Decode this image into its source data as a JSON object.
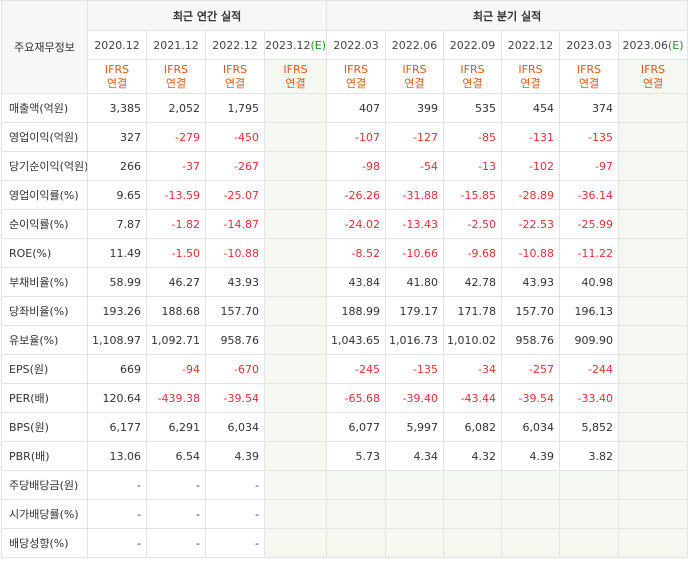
{
  "header": {
    "row_label": "주요재무정보",
    "annual_group": "최근 연간 실적",
    "quarter_group": "최근 분기 실적",
    "ifrs_top": "IFRS",
    "ifrs_bottom": "연결",
    "est_mark": "(E)"
  },
  "annual_periods": [
    "2020.12",
    "2021.12",
    "2022.12",
    "2023.12"
  ],
  "quarter_periods": [
    "2022.03",
    "2022.06",
    "2022.09",
    "2022.12",
    "2023.03",
    "2023.06"
  ],
  "rows": [
    {
      "label": "매출액(억원)",
      "annual": [
        "3,385",
        "2,052",
        "1,795",
        ""
      ],
      "quarter": [
        "407",
        "399",
        "535",
        "454",
        "374",
        ""
      ]
    },
    {
      "label": "영업이익(억원)",
      "annual": [
        "327",
        "-279",
        "-450",
        ""
      ],
      "quarter": [
        "-107",
        "-127",
        "-85",
        "-131",
        "-135",
        ""
      ]
    },
    {
      "label": "당기순이익(억원)",
      "annual": [
        "266",
        "-37",
        "-267",
        ""
      ],
      "quarter": [
        "-98",
        "-54",
        "-13",
        "-102",
        "-97",
        ""
      ]
    },
    {
      "label": "영업이익률(%)",
      "annual": [
        "9.65",
        "-13.59",
        "-25.07",
        ""
      ],
      "quarter": [
        "-26.26",
        "-31.88",
        "-15.85",
        "-28.89",
        "-36.14",
        ""
      ]
    },
    {
      "label": "순이익률(%)",
      "annual": [
        "7.87",
        "-1.82",
        "-14.87",
        ""
      ],
      "quarter": [
        "-24.02",
        "-13.43",
        "-2.50",
        "-22.53",
        "-25.99",
        ""
      ]
    },
    {
      "label": "ROE(%)",
      "annual": [
        "11.49",
        "-1.50",
        "-10.88",
        ""
      ],
      "quarter": [
        "-8.52",
        "-10.66",
        "-9.68",
        "-10.88",
        "-11.22",
        ""
      ]
    },
    {
      "label": "부채비율(%)",
      "annual": [
        "58.99",
        "46.27",
        "43.93",
        ""
      ],
      "quarter": [
        "43.84",
        "41.80",
        "42.78",
        "43.93",
        "40.98",
        ""
      ]
    },
    {
      "label": "당좌비율(%)",
      "annual": [
        "193.26",
        "188.68",
        "157.70",
        ""
      ],
      "quarter": [
        "188.99",
        "179.17",
        "171.78",
        "157.70",
        "196.13",
        ""
      ]
    },
    {
      "label": "유보율(%)",
      "annual": [
        "1,108.97",
        "1,092.71",
        "958.76",
        ""
      ],
      "quarter": [
        "1,043.65",
        "1,016.73",
        "1,010.02",
        "958.76",
        "909.90",
        ""
      ]
    },
    {
      "label": "EPS(원)",
      "annual": [
        "669",
        "-94",
        "-670",
        ""
      ],
      "quarter": [
        "-245",
        "-135",
        "-34",
        "-257",
        "-244",
        ""
      ]
    },
    {
      "label": "PER(배)",
      "annual": [
        "120.64",
        "-439.38",
        "-39.54",
        ""
      ],
      "quarter": [
        "-65.68",
        "-39.40",
        "-43.44",
        "-39.54",
        "-33.40",
        ""
      ]
    },
    {
      "label": "BPS(원)",
      "annual": [
        "6,177",
        "6,291",
        "6,034",
        ""
      ],
      "quarter": [
        "6,077",
        "5,997",
        "6,082",
        "6,034",
        "5,852",
        ""
      ]
    },
    {
      "label": "PBR(배)",
      "annual": [
        "13.06",
        "6.54",
        "4.39",
        ""
      ],
      "quarter": [
        "5.73",
        "4.34",
        "4.32",
        "4.39",
        "3.82",
        ""
      ]
    },
    {
      "label": "주당배당금(원)",
      "annual": [
        "-",
        "-",
        "-",
        ""
      ],
      "quarter": [
        "",
        "",
        "",
        "",
        "",
        ""
      ]
    },
    {
      "label": "시가배당률(%)",
      "annual": [
        "-",
        "-",
        "-",
        ""
      ],
      "quarter": [
        "",
        "",
        "",
        "",
        "",
        ""
      ]
    },
    {
      "label": "배당성향(%)",
      "annual": [
        "-",
        "-",
        "-",
        ""
      ],
      "quarter": [
        "",
        "",
        "",
        "",
        "",
        ""
      ]
    }
  ],
  "colors": {
    "negative": "#e5303a",
    "ifrs": "#e2571a",
    "estimate": "#2a8a2a",
    "estimate_bg": "#f5f8f1"
  }
}
